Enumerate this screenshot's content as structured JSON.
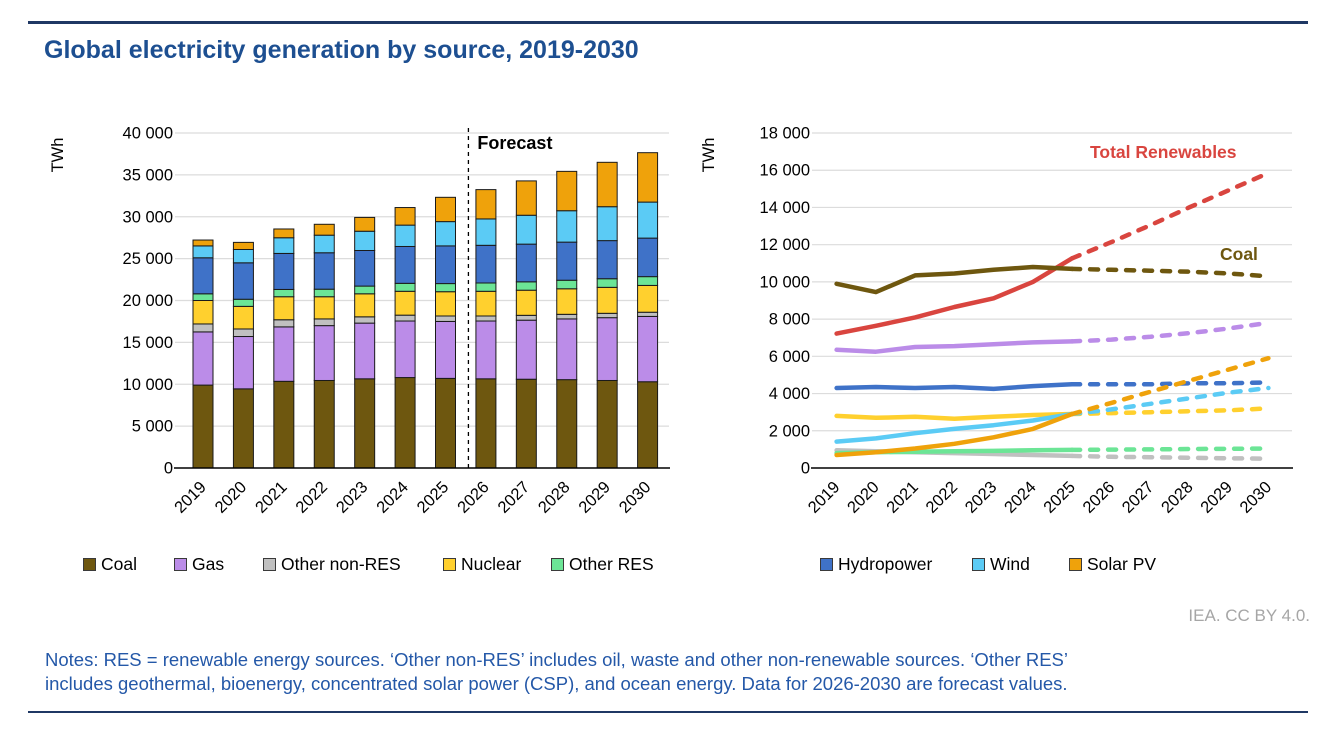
{
  "page": {
    "title": "Global electricity generation by source, 2019-2030",
    "credit": "IEA. CC BY 4.0.",
    "notes": {
      "line1": "Notes: RES = renewable energy sources. ‘Other non-RES’ includes oil, waste and other non-renewable sources. ‘Other RES’",
      "line2": "includes geothermal, bioenergy, concentrated solar power (CSP), and ocean energy. Data for 2026-2030 are forecast values."
    },
    "colors": {
      "title_text": "#1D4F91",
      "notes_text": "#2458A8",
      "rule": "#1F3864",
      "credit_text": "#A6A6A6",
      "gridline": "#DCDCDC",
      "axis": "#000000"
    }
  },
  "legend": {
    "items": [
      {
        "label": "Coal",
        "color": "#6E570F"
      },
      {
        "label": "Gas",
        "color": "#BB8CE8"
      },
      {
        "label": "Other non-RES",
        "color": "#C0C0C0"
      },
      {
        "label": "Nuclear",
        "color": "#FFD02E"
      },
      {
        "label": "Other RES",
        "color": "#6CE596"
      },
      {
        "label": "Hydropower",
        "color": "#3F72C8"
      },
      {
        "label": "Wind",
        "color": "#5BCBF5"
      },
      {
        "label": "Solar PV",
        "color": "#EFA20B"
      }
    ]
  },
  "chart_data": [
    {
      "type": "bar",
      "stacked": true,
      "title": "",
      "xlabel": "",
      "ylabel": "TWh",
      "ylim": [
        0,
        40000
      ],
      "ytick_step": 5000,
      "grid": true,
      "legend_position": "bottom",
      "forecast_label": "Forecast",
      "forecast_start_category": "2026",
      "categories": [
        "2019",
        "2020",
        "2021",
        "2022",
        "2023",
        "2024",
        "2025",
        "2026",
        "2027",
        "2028",
        "2029",
        "2030"
      ],
      "series": [
        {
          "name": "Coal",
          "color": "#6E570F",
          "values": [
            9900,
            9450,
            10350,
            10450,
            10650,
            10800,
            10700,
            10650,
            10600,
            10550,
            10450,
            10300
          ]
        },
        {
          "name": "Gas",
          "color": "#BB8CE8",
          "values": [
            6350,
            6250,
            6500,
            6550,
            6650,
            6750,
            6800,
            6900,
            7050,
            7250,
            7500,
            7800
          ]
        },
        {
          "name": "Other non-RES",
          "color": "#C0C0C0",
          "values": [
            950,
            900,
            850,
            800,
            750,
            700,
            650,
            600,
            580,
            550,
            520,
            500
          ]
        },
        {
          "name": "Nuclear",
          "color": "#FFD02E",
          "values": [
            2800,
            2700,
            2750,
            2650,
            2750,
            2850,
            2900,
            2950,
            3000,
            3050,
            3100,
            3200
          ]
        },
        {
          "name": "Other RES",
          "color": "#6CE596",
          "values": [
            800,
            850,
            870,
            900,
            920,
            950,
            970,
            990,
            1000,
            1020,
            1030,
            1050
          ]
        },
        {
          "name": "Hydropower",
          "color": "#3F72C8",
          "values": [
            4300,
            4350,
            4300,
            4350,
            4250,
            4400,
            4500,
            4500,
            4500,
            4550,
            4550,
            4600
          ]
        },
        {
          "name": "Wind",
          "color": "#5BCBF5",
          "values": [
            1420,
            1590,
            1870,
            2100,
            2300,
            2550,
            2900,
            3150,
            3450,
            3750,
            4050,
            4300
          ]
        },
        {
          "name": "Solar PV",
          "color": "#EFA20B",
          "values": [
            700,
            850,
            1050,
            1300,
            1650,
            2100,
            2900,
            3500,
            4100,
            4700,
            5300,
            5900
          ]
        }
      ]
    },
    {
      "type": "line",
      "title": "",
      "xlabel": "",
      "ylabel": "TWh",
      "ylim": [
        0,
        18000
      ],
      "ytick_step": 2000,
      "grid": true,
      "solid_through_category": "2025",
      "forecast_start_category": "2026",
      "categories": [
        "2019",
        "2020",
        "2021",
        "2022",
        "2023",
        "2024",
        "2025",
        "2026",
        "2027",
        "2028",
        "2029",
        "2030"
      ],
      "series": [
        {
          "name": "Other non-RES",
          "color": "#C0C0C0",
          "values": [
            950,
            900,
            850,
            800,
            750,
            700,
            650,
            600,
            580,
            550,
            520,
            500
          ]
        },
        {
          "name": "Other RES",
          "color": "#6CE596",
          "values": [
            800,
            850,
            870,
            900,
            920,
            950,
            970,
            990,
            1000,
            1020,
            1030,
            1050
          ]
        },
        {
          "name": "Nuclear",
          "color": "#FFD02E",
          "values": [
            2800,
            2700,
            2750,
            2650,
            2750,
            2850,
            2900,
            2950,
            3000,
            3050,
            3100,
            3200
          ]
        },
        {
          "name": "Wind",
          "color": "#5BCBF5",
          "values": [
            1420,
            1590,
            1870,
            2100,
            2300,
            2550,
            2900,
            3150,
            3450,
            3750,
            4050,
            4300
          ]
        },
        {
          "name": "Hydropower",
          "color": "#3F72C8",
          "values": [
            4300,
            4350,
            4300,
            4350,
            4250,
            4400,
            4500,
            4500,
            4500,
            4550,
            4550,
            4600
          ]
        },
        {
          "name": "Solar PV",
          "color": "#EFA20B",
          "values": [
            700,
            850,
            1050,
            1300,
            1650,
            2100,
            2900,
            3500,
            4100,
            4700,
            5300,
            5900
          ]
        },
        {
          "name": "Gas",
          "color": "#BB8CE8",
          "values": [
            6350,
            6250,
            6500,
            6550,
            6650,
            6750,
            6800,
            6900,
            7050,
            7250,
            7500,
            7800
          ]
        },
        {
          "name": "Total Renewables",
          "color": "#D9453F",
          "values": [
            7220,
            7640,
            8090,
            8650,
            9120,
            10000,
            11270,
            12140,
            13050,
            14020,
            14930,
            15850
          ]
        },
        {
          "name": "Coal",
          "color": "#6E570F",
          "values": [
            9900,
            9450,
            10350,
            10450,
            10650,
            10800,
            10700,
            10650,
            10600,
            10550,
            10450,
            10300
          ]
        }
      ],
      "annotations": [
        {
          "text": "Total Renewables",
          "color": "#D9453F"
        },
        {
          "text": "Coal",
          "color": "#6E570F"
        }
      ]
    }
  ]
}
